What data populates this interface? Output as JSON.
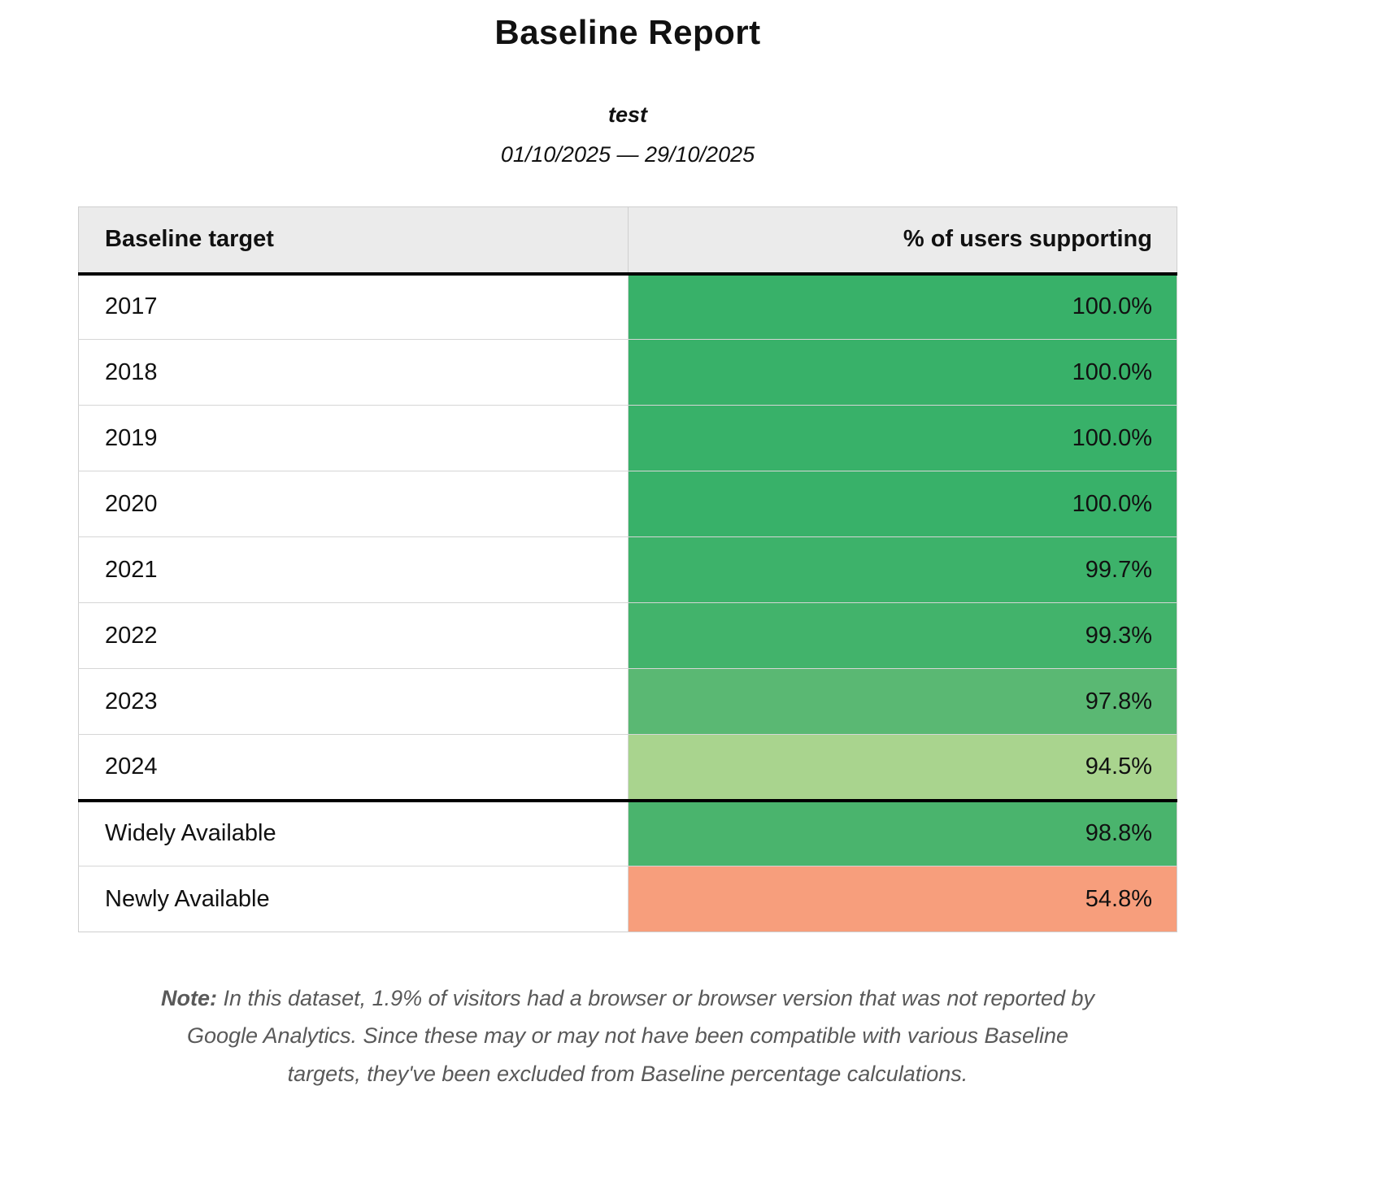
{
  "report": {
    "title": "Baseline Report",
    "subtitle": "test",
    "date_range": "01/10/2025 — 29/10/2025"
  },
  "table": {
    "headers": {
      "target": "Baseline target",
      "percent": "% of users supporting"
    },
    "rows": [
      {
        "label": "2017",
        "value": "100.0%",
        "color": "#38b169"
      },
      {
        "label": "2018",
        "value": "100.0%",
        "color": "#38b169"
      },
      {
        "label": "2019",
        "value": "100.0%",
        "color": "#38b169"
      },
      {
        "label": "2020",
        "value": "100.0%",
        "color": "#38b169"
      },
      {
        "label": "2021",
        "value": "99.7%",
        "color": "#3db26a"
      },
      {
        "label": "2022",
        "value": "99.3%",
        "color": "#42b36b"
      },
      {
        "label": "2023",
        "value": "97.8%",
        "color": "#5ab873"
      },
      {
        "label": "2024",
        "value": "94.5%",
        "color": "#a9d48e"
      },
      {
        "label": "Widely Available",
        "value": "98.8%",
        "color": "#4ab46d",
        "divider_above": true
      },
      {
        "label": "Newly Available",
        "value": "54.8%",
        "color": "#f79e7c"
      }
    ]
  },
  "note": {
    "label": "Note:",
    "text": " In this dataset, 1.9% of visitors had a browser or browser version that was not reported by Google Analytics. Since these may or may not have been compatible with various Baseline targets, they've been excluded from Baseline percentage calculations."
  },
  "colors": {
    "header_bg": "#ebebeb",
    "divider": "#000000",
    "row_border": "#d6d6d6",
    "note_text": "#595959"
  }
}
